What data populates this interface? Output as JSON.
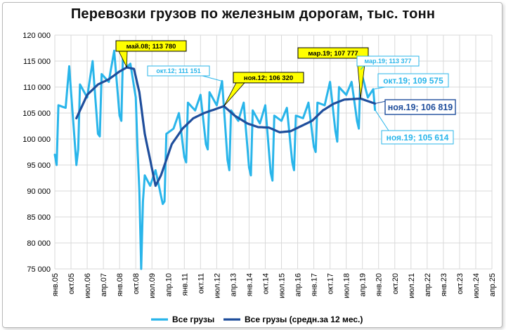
{
  "title": "Перевозки грузов по железным дорогам, тыс. тонн",
  "colors": {
    "monthly": "#29b5ea",
    "average": "#1f4e9c",
    "grid": "#d9d9d9",
    "callout_yellow": "#ffff00"
  },
  "chart_data": {
    "type": "line",
    "title": "Перевозки грузов по железным дорогам, тыс. тонн",
    "x_start": "янв.05",
    "x_end": "апр.25",
    "ylim": [
      75000,
      120000
    ],
    "yticks": [
      "75 000",
      "80 000",
      "85 000",
      "90 000",
      "95 000",
      "100 000",
      "105 000",
      "110 000",
      "115 000",
      "120 000"
    ],
    "xtick_labels": [
      "янв.05",
      "окт.05",
      "июл.06",
      "апр.07",
      "янв.08",
      "окт.08",
      "июл.09",
      "апр.10",
      "янв.11",
      "окт.11",
      "июл.12",
      "апр.13",
      "янв.14",
      "окт.14",
      "июл.15",
      "апр.16",
      "янв.17",
      "окт.17",
      "июл.18",
      "апр.19",
      "янв.20",
      "окт.20",
      "июл.21",
      "апр.22",
      "янв.23",
      "окт.23",
      "июл.24",
      "апр.25"
    ],
    "grid": true,
    "legend_position": "bottom",
    "series": [
      {
        "name": "Все грузы",
        "color": "#29b5ea",
        "anchors": [
          [
            "янв.05",
            97000
          ],
          [
            "фев.05",
            95000
          ],
          [
            "мар.05",
            106500
          ],
          [
            "июл.05",
            106000
          ],
          [
            "сен.05",
            114000
          ],
          [
            "янв.06",
            95000
          ],
          [
            "фев.06",
            98000
          ],
          [
            "мар.06",
            110500
          ],
          [
            "июл.06",
            108000
          ],
          [
            "окт.06",
            115000
          ],
          [
            "янв.07",
            101000
          ],
          [
            "фев.07",
            100500
          ],
          [
            "мар.07",
            112500
          ],
          [
            "июл.07",
            111000
          ],
          [
            "окт.07",
            117000
          ],
          [
            "янв.08",
            104500
          ],
          [
            "фев.08",
            103500
          ],
          [
            "мар.08",
            118500
          ],
          [
            "май.08",
            113780
          ],
          [
            "июл.08",
            114500
          ],
          [
            "окт.08",
            108000
          ],
          [
            "ноя.08",
            98000
          ],
          [
            "дек.08",
            90000
          ],
          [
            "янв.09",
            75000
          ],
          [
            "фев.09",
            88000
          ],
          [
            "мар.09",
            93000
          ],
          [
            "июн.09",
            91000
          ],
          [
            "сен.09",
            94000
          ],
          [
            "янв.10",
            87500
          ],
          [
            "фев.10",
            88000
          ],
          [
            "мар.10",
            101000
          ],
          [
            "июл.10",
            102000
          ],
          [
            "окт.10",
            105000
          ],
          [
            "янв.11",
            96500
          ],
          [
            "фев.11",
            95500
          ],
          [
            "мар.11",
            107000
          ],
          [
            "июл.11",
            105500
          ],
          [
            "окт.11",
            108500
          ],
          [
            "янв.12",
            99000
          ],
          [
            "фев.12",
            98000
          ],
          [
            "мар.12",
            109000
          ],
          [
            "июл.12",
            106500
          ],
          [
            "окт.12",
            111151
          ],
          [
            "янв.13",
            96000
          ],
          [
            "фев.13",
            94000
          ],
          [
            "мар.13",
            105500
          ],
          [
            "июл.13",
            103500
          ],
          [
            "окт.13",
            107000
          ],
          [
            "янв.14",
            94500
          ],
          [
            "фев.14",
            93000
          ],
          [
            "мар.14",
            105500
          ],
          [
            "июл.14",
            103000
          ],
          [
            "окт.14",
            106500
          ],
          [
            "янв.15",
            93500
          ],
          [
            "фев.15",
            92000
          ],
          [
            "мар.15",
            104500
          ],
          [
            "июл.15",
            103500
          ],
          [
            "окт.15",
            106000
          ],
          [
            "янв.16",
            95500
          ],
          [
            "фев.16",
            94000
          ],
          [
            "мар.16",
            104500
          ],
          [
            "июл.16",
            104000
          ],
          [
            "окт.16",
            107000
          ],
          [
            "янв.17",
            98500
          ],
          [
            "фев.17",
            97500
          ],
          [
            "мар.17",
            107000
          ],
          [
            "июл.17",
            106500
          ],
          [
            "окт.17",
            111000
          ],
          [
            "янв.18",
            101500
          ],
          [
            "фев.18",
            99500
          ],
          [
            "мар.18",
            110000
          ],
          [
            "июл.18",
            108500
          ],
          [
            "окт.18",
            111000
          ],
          [
            "янв.19",
            103500
          ],
          [
            "фев.19",
            102000
          ],
          [
            "мар.19",
            113377
          ],
          [
            "июл.19",
            108000
          ],
          [
            "окт.19",
            109575
          ],
          [
            "ноя.19",
            105614
          ]
        ]
      },
      {
        "name": "Все грузы (средн.за 12 мес.)",
        "color": "#1f4e9c",
        "anchors": [
          [
            "янв.06",
            104000
          ],
          [
            "июл.06",
            108500
          ],
          [
            "янв.07",
            110500
          ],
          [
            "июл.07",
            111500
          ],
          [
            "янв.08",
            113000
          ],
          [
            "май.08",
            113780
          ],
          [
            "сен.08",
            113500
          ],
          [
            "дек.08",
            109000
          ],
          [
            "мар.09",
            101000
          ],
          [
            "июн.09",
            96000
          ],
          [
            "сен.09",
            91000
          ],
          [
            "дек.09",
            93000
          ],
          [
            "июн.10",
            99000
          ],
          [
            "дек.10",
            102000
          ],
          [
            "июн.11",
            104000
          ],
          [
            "дек.11",
            105000
          ],
          [
            "ноя.12",
            106320
          ],
          [
            "май.13",
            104500
          ],
          [
            "дек.13",
            103000
          ],
          [
            "июн.14",
            102300
          ],
          [
            "дек.14",
            102200
          ],
          [
            "июн.15",
            101300
          ],
          [
            "дек.15",
            101500
          ],
          [
            "июн.16",
            102500
          ],
          [
            "дек.16",
            103500
          ],
          [
            "июн.17",
            105500
          ],
          [
            "дек.17",
            106800
          ],
          [
            "июн.18",
            107600
          ],
          [
            "мар.19",
            107777
          ],
          [
            "июл.19",
            107300
          ],
          [
            "ноя.19",
            106819
          ]
        ]
      }
    ],
    "annotations": [
      {
        "text": "май.08;  113 780",
        "style": "yellow"
      },
      {
        "text": "окт.12; 111 151",
        "style": "light"
      },
      {
        "text": "ноя.12;  106 320",
        "style": "yellow"
      },
      {
        "text": "мар.19;  107 777",
        "style": "yellow"
      },
      {
        "text": "мар.19; 113 377",
        "style": "light"
      },
      {
        "text": "окт.19; 109 575",
        "style": "light-large"
      },
      {
        "text": "ноя.19;  106 819",
        "style": "dark-large"
      },
      {
        "text": "ноя.19; 105 614",
        "style": "light-large"
      }
    ]
  },
  "legend": {
    "items": [
      "Все грузы",
      "Все грузы (средн.за 12 мес.)"
    ]
  }
}
